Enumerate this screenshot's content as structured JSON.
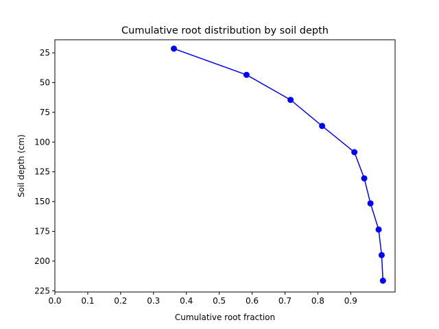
{
  "chart_data": {
    "type": "line",
    "title": "Cumulative root distribution by soil depth",
    "xlabel": "Cumulative root fraction",
    "ylabel": "Soil depth (cm)",
    "xlim": [
      0.0,
      1.035
    ],
    "ylim": [
      226,
      14
    ],
    "y_inverted": true,
    "x_ticks": [
      0.0,
      0.1,
      0.2,
      0.3,
      0.4,
      0.5,
      0.6,
      0.7,
      0.8,
      0.9
    ],
    "x_tick_labels": [
      "0.0",
      "0.1",
      "0.2",
      "0.3",
      "0.4",
      "0.5",
      "0.6",
      "0.7",
      "0.8",
      "0.9"
    ],
    "y_ticks": [
      25,
      50,
      75,
      100,
      125,
      150,
      175,
      200,
      225
    ],
    "y_tick_labels": [
      "25",
      "50",
      "75",
      "100",
      "125",
      "150",
      "175",
      "200",
      "225"
    ],
    "grid": false,
    "series": [
      {
        "color": "#0000ff",
        "marker": "circle",
        "x": [
          0.362,
          0.583,
          0.717,
          0.813,
          0.911,
          0.941,
          0.96,
          0.985,
          0.994,
          0.998
        ],
        "y": [
          21.5,
          43.5,
          64.5,
          86.5,
          108.5,
          130.5,
          151.5,
          173.5,
          195.0,
          216.5
        ]
      }
    ]
  }
}
